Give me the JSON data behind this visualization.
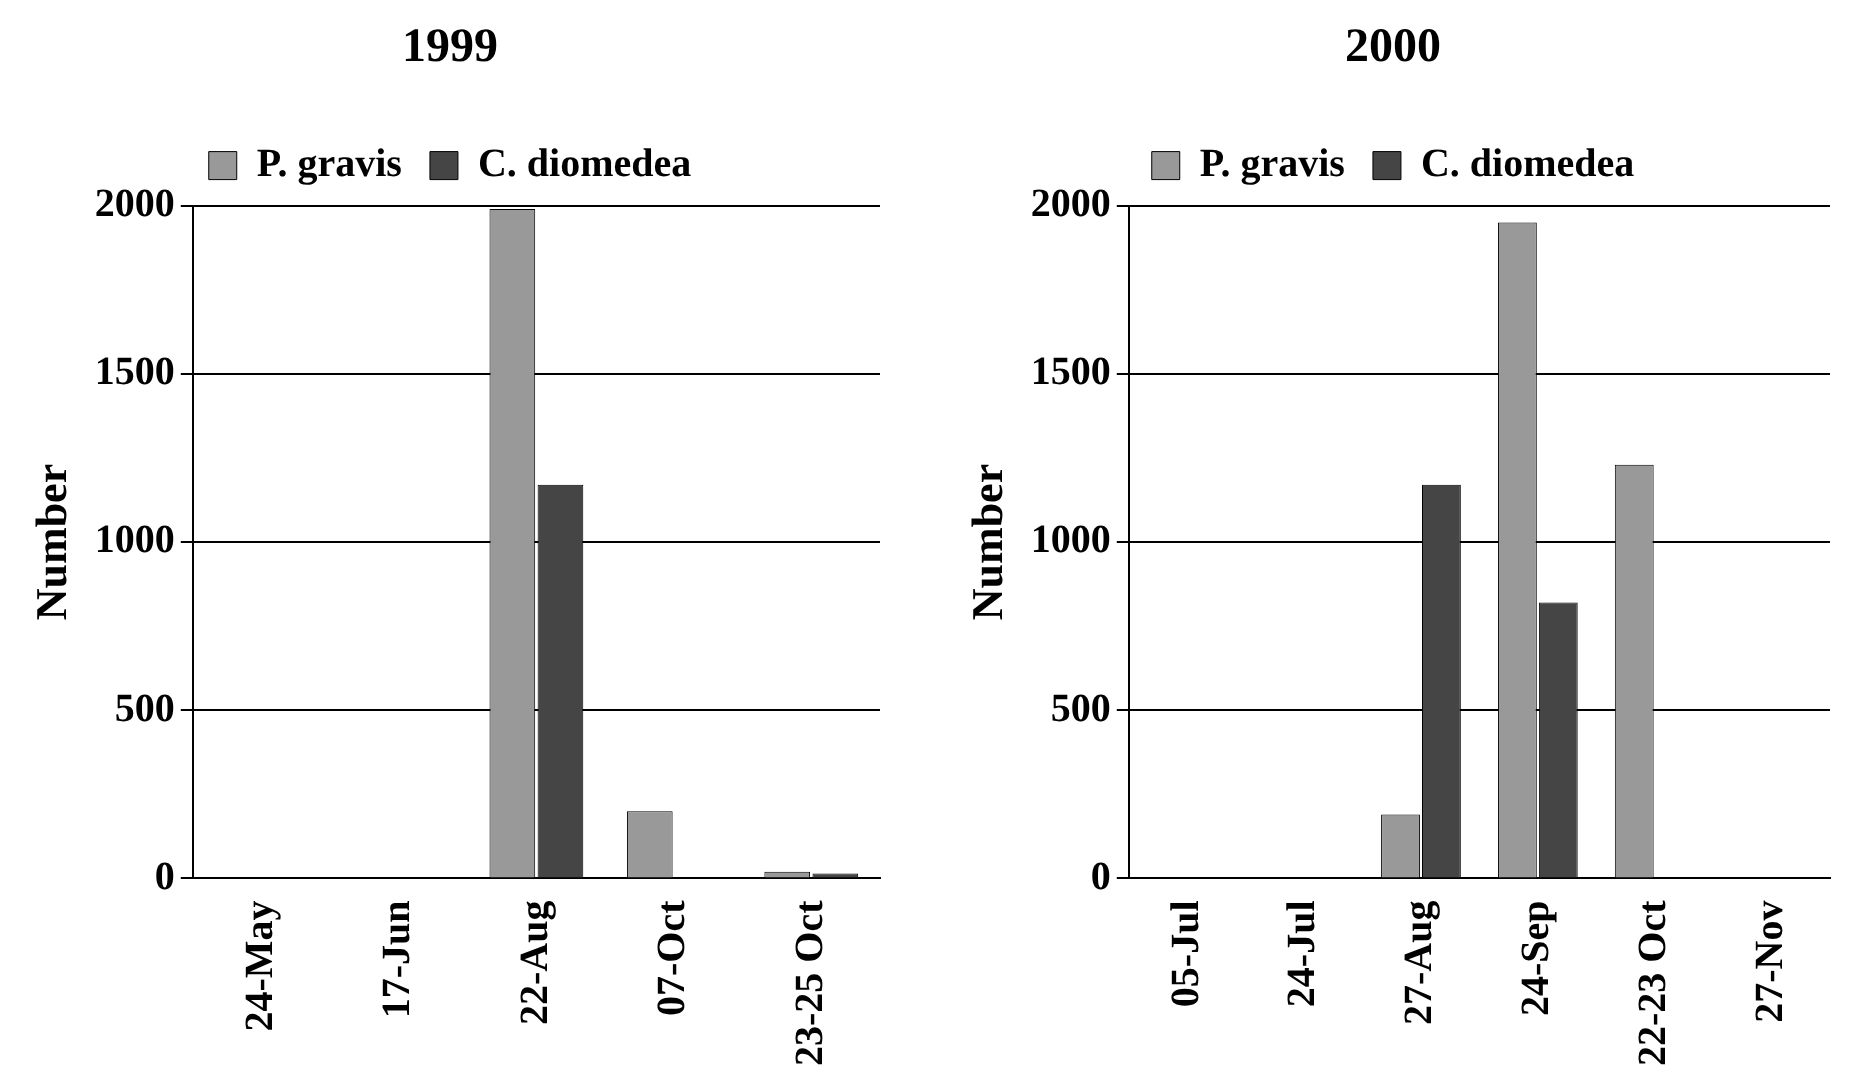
{
  "chart_data": [
    {
      "type": "bar",
      "title": "1999",
      "ylabel": "Number",
      "categories": [
        "24-May",
        "17-Jun",
        "22-Aug",
        "07-Oct",
        "23-25 Oct"
      ],
      "series": [
        {
          "name": "P. gravis",
          "color": "#999999",
          "values": [
            0,
            0,
            1990,
            200,
            20
          ]
        },
        {
          "name": "C. diomedea",
          "color": "#454545",
          "values": [
            0,
            0,
            1170,
            0,
            15
          ]
        }
      ],
      "ylim": [
        0,
        2000
      ],
      "yticks": [
        0,
        500,
        1000,
        1500,
        2000
      ],
      "grid": "y",
      "legend": "top"
    },
    {
      "type": "bar",
      "title": "2000",
      "ylabel": "Number",
      "categories": [
        "05-Jul",
        "24-Jul",
        "27-Aug",
        "24-Sep",
        "22-23 Oct",
        "27-Nov"
      ],
      "series": [
        {
          "name": "P. gravis",
          "color": "#999999",
          "values": [
            0,
            0,
            190,
            1950,
            1230,
            0
          ]
        },
        {
          "name": "C. diomedea",
          "color": "#454545",
          "values": [
            0,
            0,
            1170,
            820,
            0,
            0
          ]
        }
      ],
      "ylim": [
        0,
        2000
      ],
      "yticks": [
        0,
        500,
        1000,
        1500,
        2000
      ],
      "grid": "y",
      "legend": "top"
    }
  ]
}
